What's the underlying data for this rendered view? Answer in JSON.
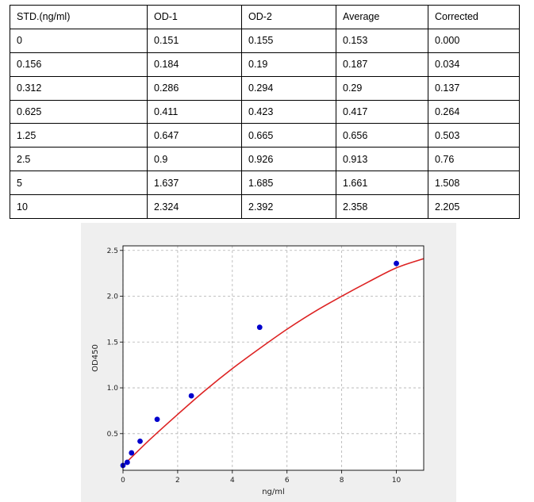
{
  "table": {
    "headers": [
      "STD.(ng/ml)",
      "OD-1",
      "OD-2",
      "Average",
      "Corrected"
    ],
    "rows": [
      [
        "0",
        "0.151",
        "0.155",
        "0.153",
        "0.000"
      ],
      [
        "0.156",
        "0.184",
        "0.19",
        "0.187",
        "0.034"
      ],
      [
        "0.312",
        "0.286",
        "0.294",
        "0.29",
        "0.137"
      ],
      [
        "0.625",
        "0.411",
        "0.423",
        "0.417",
        "0.264"
      ],
      [
        "1.25",
        "0.647",
        "0.665",
        "0.656",
        "0.503"
      ],
      [
        "2.5",
        "0.9",
        "0.926",
        "0.913",
        "0.76"
      ],
      [
        "5",
        "1.637",
        "1.685",
        "1.661",
        "1.508"
      ],
      [
        "10",
        "2.324",
        "2.392",
        "2.358",
        "2.205"
      ]
    ]
  },
  "chart_data": {
    "type": "scatter",
    "xlabel": "ng/ml",
    "ylabel": "OD450",
    "xlim": [
      0,
      11
    ],
    "ylim": [
      0.1,
      2.55
    ],
    "xticks": [
      "0",
      "2",
      "4",
      "6",
      "8",
      "10"
    ],
    "yticks": [
      "0.5",
      "1.0",
      "1.5",
      "2.0",
      "2.5"
    ],
    "grid": true,
    "series": [
      {
        "kind": "points",
        "color": "#0000cc",
        "x": [
          0,
          0.156,
          0.312,
          0.625,
          1.25,
          2.5,
          5,
          10
        ],
        "y": [
          0.153,
          0.187,
          0.29,
          0.417,
          0.656,
          0.913,
          1.661,
          2.358
        ]
      },
      {
        "kind": "fit-curve",
        "color": "#dd2222",
        "x": [
          0,
          1,
          2,
          3,
          4,
          5,
          6,
          7,
          8,
          9,
          10,
          11
        ],
        "y": [
          0.15,
          0.44,
          0.71,
          0.97,
          1.21,
          1.43,
          1.64,
          1.83,
          2.0,
          2.16,
          2.31,
          2.41
        ]
      }
    ]
  }
}
